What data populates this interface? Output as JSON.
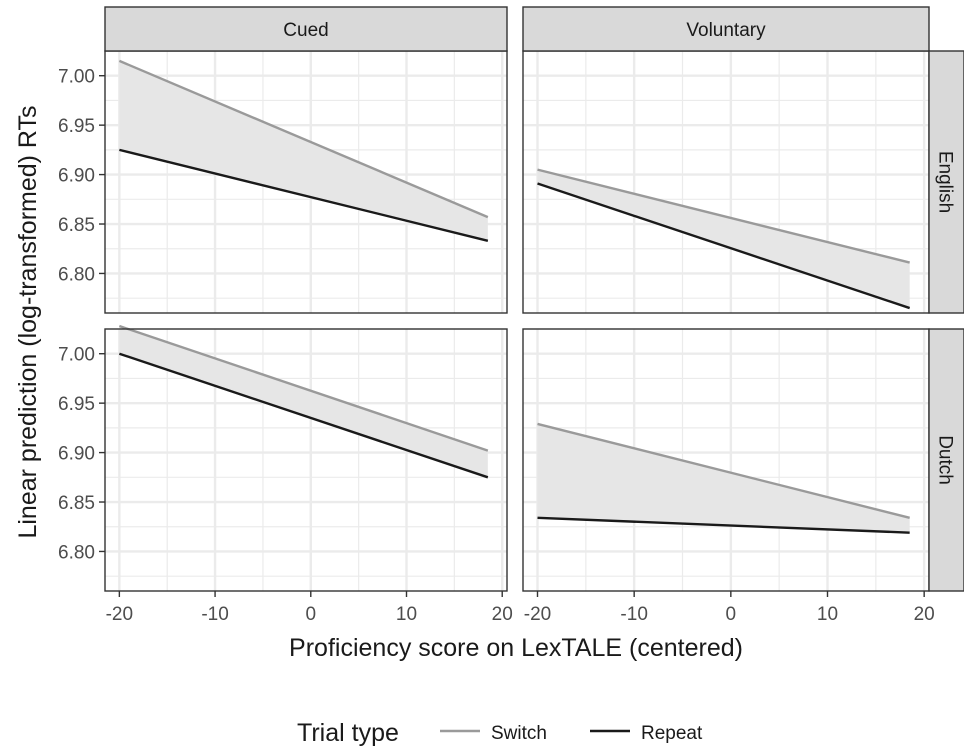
{
  "chart_data": {
    "type": "line",
    "ylabel": "Linear prediction (log-transformed) RTs",
    "xlabel": "Proficiency score on LexTALE (centered)",
    "column_strips": [
      "Cued",
      "Voluntary"
    ],
    "row_strips": [
      "English",
      "Dutch"
    ],
    "x_ticks": [
      -20,
      -10,
      0,
      10,
      20
    ],
    "x_tick_labels": [
      "-20",
      "-10",
      "0",
      "10",
      "20"
    ],
    "y_ticks": [
      6.8,
      6.85,
      6.9,
      6.95,
      7.0
    ],
    "y_tick_labels": [
      "6.80",
      "6.85",
      "6.90",
      "6.95",
      "7.00"
    ],
    "xlim": [
      -21.5,
      20.5
    ],
    "ylim": [
      6.76,
      7.025
    ],
    "grid": true,
    "legend": {
      "title": "Trial type",
      "position": "bottom",
      "entries": [
        {
          "label": "Switch",
          "color": "#9a9a9a"
        },
        {
          "label": "Repeat",
          "color": "#1a1a1a"
        }
      ]
    },
    "panels": [
      {
        "column": "Cued",
        "row": "English",
        "series": [
          {
            "name": "Switch",
            "x": [
              -20,
              18.5
            ],
            "y": [
              7.015,
              6.857
            ]
          },
          {
            "name": "Repeat",
            "x": [
              -20,
              18.5
            ],
            "y": [
              6.925,
              6.833
            ]
          }
        ]
      },
      {
        "column": "Voluntary",
        "row": "English",
        "series": [
          {
            "name": "Switch",
            "x": [
              -20,
              18.5
            ],
            "y": [
              6.905,
              6.811
            ]
          },
          {
            "name": "Repeat",
            "x": [
              -20,
              18.5
            ],
            "y": [
              6.891,
              6.765
            ]
          }
        ]
      },
      {
        "column": "Cued",
        "row": "Dutch",
        "series": [
          {
            "name": "Switch",
            "x": [
              -20,
              18.5
            ],
            "y": [
              7.028,
              6.902
            ]
          },
          {
            "name": "Repeat",
            "x": [
              -20,
              18.5
            ],
            "y": [
              7.0,
              6.875
            ]
          }
        ]
      },
      {
        "column": "Voluntary",
        "row": "Dutch",
        "series": [
          {
            "name": "Switch",
            "x": [
              -20,
              18.5
            ],
            "y": [
              6.929,
              6.834
            ]
          },
          {
            "name": "Repeat",
            "x": [
              -20,
              18.5
            ],
            "y": [
              6.834,
              6.819
            ]
          }
        ]
      }
    ],
    "colors": {
      "switch": "#9a9a9a",
      "repeat": "#1a1a1a",
      "band": "#e6e6e6",
      "strip": "#d9d9d9",
      "grid": "#ebebeb",
      "frame": "#333333",
      "text": "#1a1a1a",
      "tick_text": "#4d4d4d"
    }
  }
}
